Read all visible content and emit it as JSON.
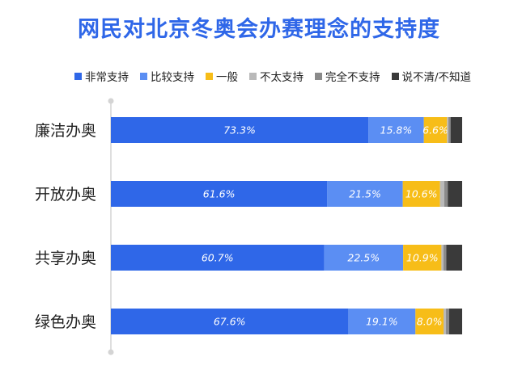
{
  "chart_data": {
    "type": "bar",
    "orientation": "horizontal",
    "stacked": true,
    "title": "网民对北京冬奥会办赛理念的支持度",
    "categories": [
      "廉洁办奥",
      "开放办奥",
      "共享办奥",
      "绿色办奥"
    ],
    "series": [
      {
        "name": "非常支持",
        "color": "#2f67e8",
        "values": [
          73.3,
          61.6,
          60.7,
          67.6
        ],
        "labels": [
          "73.3%",
          "61.6%",
          "60.7%",
          "67.6%"
        ]
      },
      {
        "name": "比较支持",
        "color": "#5b8ef3",
        "values": [
          15.8,
          21.5,
          22.5,
          19.1
        ],
        "labels": [
          "15.8%",
          "21.5%",
          "22.5%",
          "19.1%"
        ]
      },
      {
        "name": "一般",
        "color": "#f7bd18",
        "values": [
          6.6,
          10.6,
          10.9,
          8.0
        ],
        "labels": [
          "6.6%",
          "10.6%",
          "10.9%",
          "8.0%"
        ]
      },
      {
        "name": "不太支持",
        "color": "#b9b9b9",
        "values": [
          0.4,
          1.2,
          0.6,
          0.7
        ],
        "labels": [
          "",
          "",
          "",
          ""
        ]
      },
      {
        "name": "完全不支持",
        "color": "#8a8a8a",
        "values": [
          0.6,
          1.0,
          0.8,
          0.9
        ],
        "labels": [
          "",
          "",
          "",
          ""
        ]
      },
      {
        "name": "说不清/不知道",
        "color": "#3a3a3a",
        "values": [
          3.3,
          4.1,
          4.5,
          3.7
        ],
        "labels": [
          "",
          "",
          "",
          ""
        ]
      }
    ],
    "xlim": [
      0,
      100
    ],
    "legend": "top",
    "grid": false
  }
}
